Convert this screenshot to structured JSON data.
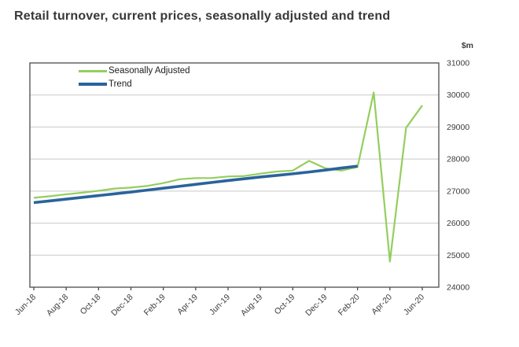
{
  "title": "Retail turnover, current prices, seasonally adjusted and trend",
  "colors": {
    "seasonally_adjusted": "#94ce5e",
    "trend": "#2a639c",
    "axis": "#4a4a4a",
    "gridline": "#c9c9c9",
    "tick_text": "#3c3c3c",
    "title_text": "#383838"
  },
  "y_axis": {
    "unit": "$m",
    "tick_labels": [
      "31000",
      "30000",
      "29000",
      "28000",
      "27000",
      "26000",
      "25000",
      "24000"
    ]
  },
  "x_axis": {
    "tick_labels": [
      "Jun-18",
      "Aug-18",
      "Oct-18",
      "Dec-18",
      "Feb-19",
      "Apr-19",
      "Jun-19",
      "Aug-19",
      "Oct-19",
      "Dec-19",
      "Feb-20",
      "Apr-20",
      "Jun-20"
    ]
  },
  "chart_data": {
    "type": "line",
    "title": "Retail turnover, current prices, seasonally adjusted and trend",
    "xlabel": "",
    "ylabel": "$m",
    "ylim": [
      24000,
      31000
    ],
    "y_tick_step": 1000,
    "grid": "horizontal",
    "legend_position": "top-left",
    "x": [
      "Jun-18",
      "Jul-18",
      "Aug-18",
      "Sep-18",
      "Oct-18",
      "Nov-18",
      "Dec-18",
      "Jan-19",
      "Feb-19",
      "Mar-19",
      "Apr-19",
      "May-19",
      "Jun-19",
      "Jul-19",
      "Aug-19",
      "Sep-19",
      "Oct-19",
      "Nov-19",
      "Dec-19",
      "Jan-20",
      "Feb-20",
      "Mar-20",
      "Apr-20",
      "May-20",
      "Jun-20"
    ],
    "x_tick_labels": [
      "Jun-18",
      "Aug-18",
      "Oct-18",
      "Dec-18",
      "Feb-19",
      "Apr-19",
      "Jun-19",
      "Aug-19",
      "Oct-19",
      "Dec-19",
      "Feb-20",
      "Apr-20",
      "Jun-20"
    ],
    "series": [
      {
        "name": "Seasonally Adjusted",
        "color": "#94ce5e",
        "values": [
          26790,
          26840,
          26900,
          26950,
          27010,
          27080,
          27110,
          27160,
          27250,
          27370,
          27405,
          27410,
          27455,
          27470,
          27545,
          27610,
          27640,
          27945,
          27715,
          27640,
          27750,
          30080,
          24800,
          28975,
          29675
        ]
      },
      {
        "name": "Trend",
        "color": "#2a639c",
        "values": [
          26640,
          26695,
          26750,
          26805,
          26860,
          26915,
          26970,
          27030,
          27090,
          27150,
          27210,
          27270,
          27330,
          27385,
          27440,
          27490,
          27540,
          27595,
          27655,
          27720,
          27780,
          null,
          null,
          null,
          null
        ]
      }
    ]
  }
}
